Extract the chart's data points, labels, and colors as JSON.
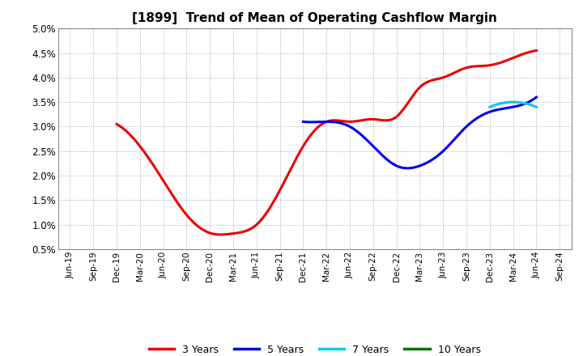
{
  "title": "[1899]  Trend of Mean of Operating Cashflow Margin",
  "background_color": "#ffffff",
  "grid_color": "#999999",
  "x_labels": [
    "Jun-19",
    "Sep-19",
    "Dec-19",
    "Mar-20",
    "Jun-20",
    "Sep-20",
    "Dec-20",
    "Mar-21",
    "Jun-21",
    "Sep-21",
    "Dec-21",
    "Mar-22",
    "Jun-22",
    "Sep-22",
    "Dec-22",
    "Mar-23",
    "Jun-23",
    "Sep-23",
    "Dec-23",
    "Mar-24",
    "Jun-24",
    "Sep-24"
  ],
  "series": {
    "3 Years": {
      "color": "#ee0000",
      "data_y": [
        null,
        null,
        0.0305,
        0.026,
        0.019,
        0.012,
        0.0083,
        0.0082,
        0.01,
        0.017,
        0.026,
        0.031,
        0.031,
        0.0315,
        0.032,
        0.038,
        0.04,
        0.042,
        0.0425,
        0.044,
        0.0455,
        null
      ]
    },
    "5 Years": {
      "color": "#0000ee",
      "data_y": [
        null,
        null,
        null,
        null,
        null,
        null,
        null,
        null,
        null,
        null,
        0.031,
        0.031,
        0.03,
        0.026,
        0.022,
        0.022,
        0.025,
        0.03,
        0.033,
        0.034,
        0.036,
        null
      ]
    },
    "7 Years": {
      "color": "#00ccee",
      "data_y": [
        null,
        null,
        null,
        null,
        null,
        null,
        null,
        null,
        null,
        null,
        null,
        null,
        null,
        null,
        null,
        null,
        null,
        null,
        0.034,
        0.035,
        0.034,
        null
      ]
    },
    "10 Years": {
      "color": "#007700",
      "data_y": [
        null,
        null,
        null,
        null,
        null,
        null,
        null,
        null,
        null,
        null,
        null,
        null,
        null,
        null,
        null,
        null,
        null,
        null,
        null,
        null,
        null,
        null
      ]
    }
  },
  "ylim": [
    0.005,
    0.05
  ],
  "yticks": [
    0.005,
    0.01,
    0.015,
    0.02,
    0.025,
    0.03,
    0.035,
    0.04,
    0.045,
    0.05
  ],
  "ytick_labels": [
    "0.5%",
    "1.0%",
    "1.5%",
    "2.0%",
    "2.5%",
    "3.0%",
    "3.5%",
    "4.0%",
    "4.5%",
    "5.0%"
  ],
  "legend_entries": [
    "3 Years",
    "5 Years",
    "7 Years",
    "10 Years"
  ],
  "legend_colors": [
    "#ee0000",
    "#0000ee",
    "#00ccee",
    "#007700"
  ],
  "figsize": [
    7.2,
    4.4
  ],
  "dpi": 100
}
